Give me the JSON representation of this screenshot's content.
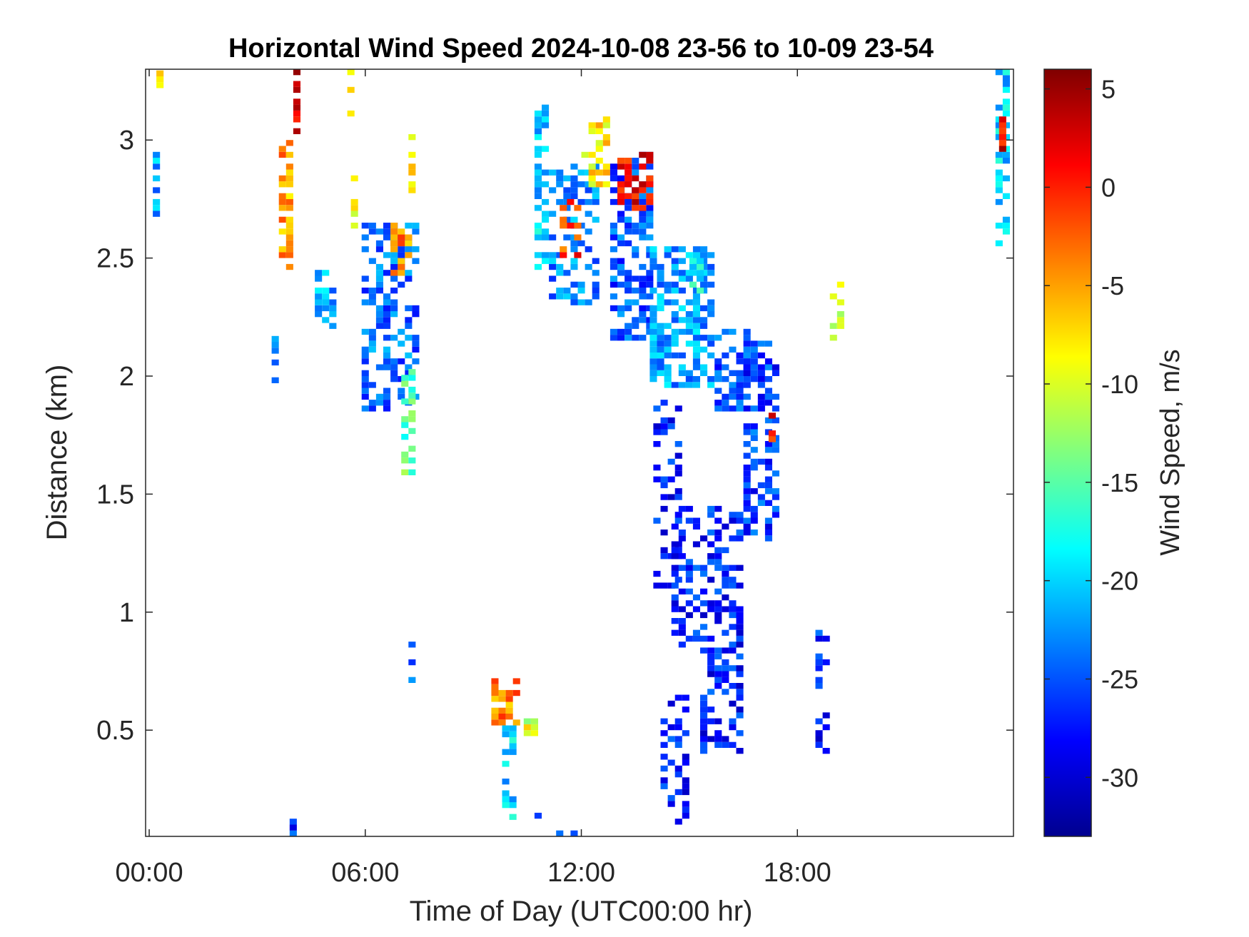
{
  "chart_data": {
    "type": "heatmap",
    "title": "Horizontal Wind Speed 2024-10-08 23-56 to 10-09 23-54",
    "xlabel": "Time of Day (UTC00:00 hr)",
    "ylabel": "Distance (km)",
    "colorbar_label": "Wind Speed, m/s",
    "x_unit": "hours",
    "xlim": [
      -0.1,
      24.0
    ],
    "ylim": [
      0.05,
      3.3
    ],
    "x_ticks": [
      0,
      6,
      12,
      18
    ],
    "x_tick_labels": [
      "00:00",
      "06:00",
      "12:00",
      "18:00"
    ],
    "y_ticks": [
      0.5,
      1,
      1.5,
      2,
      2.5,
      3
    ],
    "y_tick_labels": [
      "0.5",
      "1",
      "1.5",
      "2",
      "2.5",
      "3"
    ],
    "colorbar_range": [
      -33,
      6
    ],
    "colorbar_ticks": [
      5,
      0,
      -5,
      -10,
      -15,
      -20,
      -25,
      -30
    ],
    "colorbar_tick_labels": [
      "5",
      "0",
      "-5",
      "-10",
      "-15",
      "-20",
      "-25",
      "-30"
    ],
    "colormap": "jet",
    "grid": false,
    "cell_width_hours": 0.2,
    "cell_height_km": 0.025,
    "regions": [
      {
        "x0": 0.1,
        "x1": 0.3,
        "y0": 2.65,
        "y1": 2.93,
        "v": -22,
        "d": 0.6
      },
      {
        "x0": 0.2,
        "x1": 0.3,
        "y0": 3.22,
        "y1": 3.28,
        "v": -6,
        "d": 0.9
      },
      {
        "x0": 3.4,
        "x1": 3.6,
        "y0": 1.97,
        "y1": 2.18,
        "v": -22,
        "d": 0.7
      },
      {
        "x0": 3.6,
        "x1": 4.0,
        "y0": 2.45,
        "y1": 3.0,
        "v": -5,
        "d": 0.55
      },
      {
        "x0": 4.0,
        "x1": 4.2,
        "y0": 3.0,
        "y1": 3.3,
        "v": 2,
        "d": 0.6
      },
      {
        "x0": 4.6,
        "x1": 5.1,
        "y0": 2.2,
        "y1": 2.45,
        "v": -22,
        "d": 0.55
      },
      {
        "x0": 5.5,
        "x1": 5.7,
        "y0": 3.1,
        "y1": 3.28,
        "v": -8,
        "d": 0.6
      },
      {
        "x0": 5.6,
        "x1": 5.8,
        "y0": 2.6,
        "y1": 2.85,
        "v": -10,
        "d": 0.5
      },
      {
        "x0": 5.9,
        "x1": 7.4,
        "y0": 1.85,
        "y1": 2.65,
        "v": -24,
        "d": 0.5
      },
      {
        "x0": 6.7,
        "x1": 7.3,
        "y0": 2.4,
        "y1": 2.65,
        "v": -4,
        "d": 0.5
      },
      {
        "x0": 7.0,
        "x1": 7.4,
        "y0": 1.58,
        "y1": 2.1,
        "v": -15,
        "d": 0.5
      },
      {
        "x0": 7.2,
        "x1": 7.4,
        "y0": 2.75,
        "y1": 3.03,
        "v": -8,
        "d": 0.5
      },
      {
        "x0": 10.7,
        "x1": 11.1,
        "y0": 2.45,
        "y1": 3.15,
        "v": -20,
        "d": 0.5
      },
      {
        "x0": 11.1,
        "x1": 12.4,
        "y0": 2.3,
        "y1": 2.9,
        "v": -23,
        "d": 0.5
      },
      {
        "x0": 11.4,
        "x1": 12.0,
        "y0": 2.5,
        "y1": 2.75,
        "v": -1,
        "d": 0.45
      },
      {
        "x0": 12.0,
        "x1": 12.8,
        "y0": 2.8,
        "y1": 3.1,
        "v": -8,
        "d": 0.5
      },
      {
        "x0": 12.8,
        "x1": 14.0,
        "y0": 2.15,
        "y1": 2.95,
        "v": -25,
        "d": 0.6
      },
      {
        "x0": 13.0,
        "x1": 13.9,
        "y0": 2.7,
        "y1": 2.95,
        "v": 1,
        "d": 0.6
      },
      {
        "x0": 13.9,
        "x1": 15.7,
        "y0": 1.95,
        "y1": 2.55,
        "v": -22,
        "d": 0.65
      },
      {
        "x0": 15.0,
        "x1": 15.4,
        "y0": 2.35,
        "y1": 2.5,
        "v": -18,
        "d": 0.5
      },
      {
        "x0": 15.7,
        "x1": 16.7,
        "y0": 1.85,
        "y1": 2.2,
        "v": -25,
        "d": 0.55
      },
      {
        "x0": 16.5,
        "x1": 17.5,
        "y0": 1.3,
        "y1": 2.15,
        "v": -26,
        "d": 0.55
      },
      {
        "x0": 17.2,
        "x1": 17.4,
        "y0": 1.72,
        "y1": 1.83,
        "v": 0,
        "d": 0.7
      },
      {
        "x0": 14.0,
        "x1": 14.8,
        "y0": 1.1,
        "y1": 1.9,
        "v": -27,
        "d": 0.35
      },
      {
        "x0": 14.5,
        "x1": 16.5,
        "y0": 0.85,
        "y1": 1.45,
        "v": -27,
        "d": 0.45
      },
      {
        "x0": 15.3,
        "x1": 16.5,
        "y0": 0.4,
        "y1": 0.85,
        "v": -27,
        "d": 0.45
      },
      {
        "x0": 14.2,
        "x1": 15.0,
        "y0": 0.1,
        "y1": 0.65,
        "v": -27,
        "d": 0.3
      },
      {
        "x0": 9.5,
        "x1": 10.3,
        "y0": 0.52,
        "y1": 0.72,
        "v": -4,
        "d": 0.6
      },
      {
        "x0": 10.4,
        "x1": 10.7,
        "y0": 0.45,
        "y1": 0.55,
        "v": -10,
        "d": 0.6
      },
      {
        "x0": 9.8,
        "x1": 10.1,
        "y0": 0.12,
        "y1": 0.5,
        "v": -20,
        "d": 0.5
      },
      {
        "x0": 10.7,
        "x1": 11.8,
        "y0": 0.05,
        "y1": 0.13,
        "v": -27,
        "d": 0.35
      },
      {
        "x0": 3.7,
        "x1": 4.1,
        "y0": 0.05,
        "y1": 0.12,
        "v": -27,
        "d": 0.5
      },
      {
        "x0": 18.9,
        "x1": 19.3,
        "y0": 2.15,
        "y1": 2.38,
        "v": -10,
        "d": 0.45
      },
      {
        "x0": 23.5,
        "x1": 23.9,
        "y0": 2.55,
        "y1": 3.28,
        "v": -20,
        "d": 0.5
      },
      {
        "x0": 23.6,
        "x1": 23.8,
        "y0": 2.95,
        "y1": 3.12,
        "v": 2,
        "d": 0.6
      },
      {
        "x0": 18.5,
        "x1": 18.8,
        "y0": 0.4,
        "y1": 0.95,
        "v": -27,
        "d": 0.25
      },
      {
        "x0": 7.2,
        "x1": 7.4,
        "y0": 0.5,
        "y1": 0.9,
        "v": -25,
        "d": 0.25
      }
    ]
  }
}
